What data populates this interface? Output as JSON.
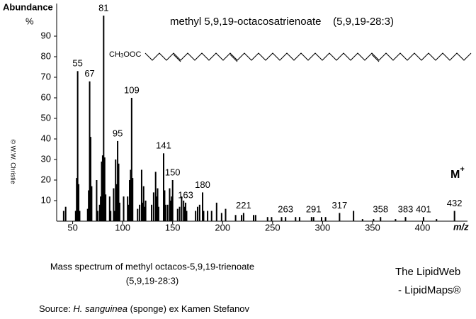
{
  "chart_data": {
    "type": "stem",
    "title": "methyl 5,9,19-octacosatrienoate    (5,9,19-28:3)",
    "y_label": "Abundance",
    "y_unit": "%",
    "x_label": "m/z",
    "molecular_ion": {
      "symbol": "M",
      "charge": "+"
    },
    "structure_label": {
      "pre": "CH",
      "sub": "3",
      "post": "OOC"
    },
    "copyright": "© W.W. Christie",
    "color": "#000000",
    "title_color": "#0000cc",
    "xlim": [
      34,
      445
    ],
    "ylim": [
      0,
      100
    ],
    "xticks": [
      50,
      100,
      150,
      200,
      250,
      300,
      350,
      400
    ],
    "yticks": [
      10,
      20,
      30,
      40,
      50,
      60,
      70,
      80,
      90
    ],
    "x": [
      55,
      67,
      81,
      95,
      109,
      141,
      150,
      163,
      180,
      221,
      263,
      291,
      317,
      358,
      383,
      401,
      432
    ],
    "values": [
      73,
      68,
      100,
      39,
      60,
      33,
      20,
      9,
      14,
      4,
      2,
      2,
      4,
      2,
      2,
      2,
      5
    ],
    "minor_x": [
      41,
      43,
      53,
      54,
      56,
      57,
      65,
      66,
      68,
      69,
      74,
      75,
      77,
      78,
      79,
      80,
      82,
      83,
      87,
      88,
      91,
      92,
      93,
      94,
      96,
      97,
      101,
      105,
      106,
      107,
      108,
      110,
      115,
      117,
      119,
      120,
      121,
      122,
      123,
      129,
      131,
      133,
      134,
      135,
      136,
      142,
      143,
      145,
      147,
      148,
      149,
      155,
      157,
      159,
      161,
      162,
      164,
      173,
      175,
      177,
      181,
      185,
      189,
      194,
      199,
      203,
      213,
      219,
      231,
      233,
      245,
      249,
      259,
      273,
      277,
      289,
      299,
      303,
      331,
      340,
      351,
      373,
      414
    ],
    "minor_values": [
      5,
      7,
      5,
      21,
      18,
      5,
      6,
      15,
      41,
      17,
      20,
      5,
      8,
      12,
      29,
      32,
      31,
      13,
      12,
      5,
      16,
      5,
      30,
      18,
      28,
      9,
      12,
      12,
      8,
      20,
      25,
      21,
      6,
      8,
      25,
      9,
      17,
      7,
      10,
      8,
      14,
      24,
      12,
      16,
      7,
      15,
      8,
      8,
      16,
      10,
      12,
      6,
      7,
      12,
      10,
      7,
      5,
      5,
      7,
      8,
      5,
      5,
      5,
      9,
      4,
      6,
      3,
      3,
      3,
      3,
      2,
      2,
      2,
      2,
      2,
      2,
      2,
      2,
      5,
      1,
      1,
      1,
      1
    ]
  },
  "caption": {
    "line1": "Mass spectrum of methyl octacos-5,9,19-trienoate",
    "line2": "(5,9,19-28:3)",
    "source_prefix": "Source: ",
    "source_species": "H. sanguinea",
    "source_suffix": " (sponge) ex Kamen Stefanov"
  },
  "credit": {
    "line1": "The LipidWeb",
    "line2": "- LipidMaps®"
  }
}
